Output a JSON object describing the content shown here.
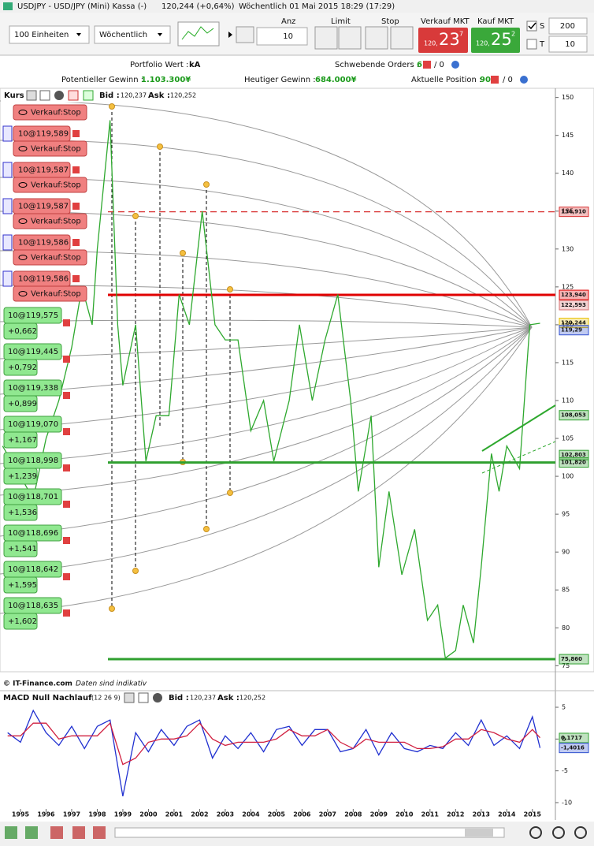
{
  "title_bar": {
    "instrument": "USDJPY - USD/JPY (Mini) Kassa (-)",
    "last": "120,244 (+0,64%)",
    "info": "Wöchentlich  01 Mai 2015 18:29 (17:29)"
  },
  "toolbar": {
    "units": "100 Einheiten",
    "period": "Wöchentlich",
    "anz_label": "Anz",
    "anz": 10,
    "limit_label": "Limit",
    "stop_label": "Stop",
    "sell": {
      "label": "Verkauf MKT",
      "prefix": "120,",
      "pips": "23",
      "fraction": "7"
    },
    "buy": {
      "label": "Kauf MKT",
      "prefix": "120,",
      "pips": "25",
      "fraction": "2"
    },
    "s_label": "S",
    "s_value": 200,
    "t_label": "T",
    "t_value": 10
  },
  "summary": {
    "portfolio_label": "Portfolio Wert :",
    "portfolio_value": "kA",
    "pending_label": "Schwebende Orders :",
    "pending_value": 6,
    "pending_sep": "/ 0",
    "potential_label": "Potentieller Gewinn :",
    "potential_value": "1.103.300¥",
    "today_label": "Heutiger Gewinn :",
    "today_value": "684.000¥",
    "position_label": "Aktuelle Position :",
    "position_value": 90,
    "position_sep": "/ 0"
  },
  "price_panel": {
    "name": "Kurs",
    "bid_label": "Bid :",
    "bid": "120,237",
    "ask_label": "Ask :",
    "ask": "120,252",
    "footer": "© IT-Finance.com",
    "footer_note": "Daten sind indikativ"
  },
  "macd_panel": {
    "name": "MACD Null Nachlauf",
    "params": "(12 26 9)",
    "bid_label": "Bid :",
    "bid": "120,237",
    "ask_label": "Ask :",
    "ask": "120,252"
  },
  "stop_orders": [
    {
      "action": "Verkauf:Stop"
    },
    {
      "label": "10@119,589",
      "action": "Verkauf:Stop"
    },
    {
      "label": "10@119,587",
      "action": "Verkauf:Stop"
    },
    {
      "label": "10@119,587",
      "action": "Verkauf:Stop"
    },
    {
      "label": "10@119,586",
      "action": "Verkauf:Stop"
    },
    {
      "label": "10@119,586",
      "action": "Verkauf:Stop"
    }
  ],
  "positions": [
    {
      "label": "10@119,575",
      "pnl": "+0,662"
    },
    {
      "label": "10@119,445",
      "pnl": "+0,792"
    },
    {
      "label": "10@119,338",
      "pnl": "+0,899"
    },
    {
      "label": "10@119,070",
      "pnl": "+1,167"
    },
    {
      "label": "10@118,998",
      "pnl": "+1,239"
    },
    {
      "label": "10@118,701",
      "pnl": "+1,536"
    },
    {
      "label": "10@118,696",
      "pnl": "+1,541"
    },
    {
      "label": "10@118,642",
      "pnl": "+1,595"
    },
    {
      "label": "10@118,635",
      "pnl": "+1,602"
    }
  ],
  "chart_data": [
    {
      "type": "line",
      "xlim": [
        1994.2,
        2015.9
      ],
      "ylim": [
        74.2,
        150.9
      ],
      "yticks": [
        75,
        80,
        85,
        90,
        95,
        100,
        105,
        110,
        115,
        120,
        125,
        130,
        135,
        140,
        145,
        150
      ],
      "x": [
        1994.3,
        1995.0,
        1995.5,
        1996.0,
        1996.5,
        1997.0,
        1997.4,
        1997.8,
        1998.0,
        1998.5,
        1998.8,
        1999.0,
        1999.5,
        1999.9,
        2000.3,
        2000.8,
        2001.2,
        2001.6,
        2002.1,
        2002.6,
        2003.0,
        2003.5,
        2004.0,
        2004.5,
        2004.9,
        2005.5,
        2005.9,
        2006.4,
        2006.9,
        2007.4,
        2007.9,
        2008.2,
        2008.7,
        2009.0,
        2009.4,
        2009.9,
        2010.4,
        2010.9,
        2011.3,
        2011.6,
        2012.0,
        2012.3,
        2012.7,
        2013.0,
        2013.4,
        2013.7,
        2014.0,
        2014.5,
        2014.9,
        2015.3
      ],
      "series": [
        {
          "color": "#2ea82e",
          "values": [
            104,
            100,
            97,
            105,
            110,
            117,
            125,
            120,
            130,
            147,
            120,
            112,
            120,
            102,
            108,
            108,
            124,
            120,
            135,
            120,
            118,
            118,
            106,
            110,
            102,
            110,
            120,
            110,
            118,
            124,
            110,
            98,
            108,
            88,
            98,
            87,
            93,
            81,
            83,
            76,
            77,
            83,
            78,
            88,
            103,
            98,
            104,
            101,
            120,
            120.2
          ]
        }
      ],
      "price_tags": [
        {
          "value": 134.91,
          "label": "134,910",
          "color": "#d83030",
          "line": "dashed"
        },
        {
          "value": 123.94,
          "label": "123,940",
          "color": "#e00000",
          "line": "solid"
        },
        {
          "value": 122.593,
          "label": "122,593",
          "color": "#d87070"
        },
        {
          "value": 120.244,
          "label": "120,244",
          "color": "#e8c000"
        },
        {
          "value": 119.29,
          "label": "119,29",
          "color": "#3050d0"
        },
        {
          "value": 108.053,
          "label": "108,053",
          "color": "#30a030"
        },
        {
          "value": 102.803,
          "label": "102,803",
          "color": "#30a030"
        },
        {
          "value": 101.82,
          "label": "101,820",
          "color": "#30a030",
          "line": "solid"
        },
        {
          "value": 75.86,
          "label": "75,860",
          "color": "#30a030",
          "line": "solid"
        }
      ]
    },
    {
      "type": "line",
      "xlim": [
        1994.2,
        2015.9
      ],
      "ylim": [
        -10.5,
        5.5
      ],
      "yticks": [
        5,
        0,
        -5,
        -10
      ],
      "xticks": [
        1995,
        1996,
        1997,
        1998,
        1999,
        2000,
        2001,
        2002,
        2003,
        2004,
        2005,
        2006,
        2007,
        2008,
        2009,
        2010,
        2011,
        2012,
        2013,
        2014,
        2015
      ],
      "x": [
        1994.5,
        1995.0,
        1995.5,
        1996.0,
        1996.5,
        1997.0,
        1997.5,
        1998.0,
        1998.5,
        1999.0,
        1999.5,
        2000.0,
        2000.5,
        2001.0,
        2001.5,
        2002.0,
        2002.5,
        2003.0,
        2003.5,
        2004.0,
        2004.5,
        2005.0,
        2005.5,
        2006.0,
        2006.5,
        2007.0,
        2007.5,
        2008.0,
        2008.5,
        2009.0,
        2009.5,
        2010.0,
        2010.5,
        2011.0,
        2011.5,
        2012.0,
        2012.5,
        2013.0,
        2013.5,
        2014.0,
        2014.5,
        2015.0,
        2015.3
      ],
      "series": [
        {
          "color": "#2030d0",
          "values": [
            1,
            -0.5,
            4.5,
            1,
            -1,
            2,
            -1.5,
            2,
            3,
            -9,
            1,
            -2,
            1.5,
            -1,
            2,
            3,
            -3,
            0.5,
            -1.5,
            1,
            -2,
            1.5,
            2,
            -1,
            1.5,
            1.5,
            -2,
            -1.5,
            1.5,
            -2.5,
            1,
            -1.5,
            -2,
            -1,
            -1.5,
            1,
            -1,
            3,
            -1,
            0.5,
            -1.5,
            3.5,
            -1.4
          ]
        },
        {
          "color": "#d02040",
          "values": [
            0.5,
            0.5,
            2.5,
            2.5,
            0,
            0.5,
            0.5,
            0.5,
            2.5,
            -4,
            -3,
            -0.5,
            0,
            0,
            0.5,
            2.5,
            0,
            -1,
            -0.5,
            -0.5,
            -0.5,
            0,
            1.5,
            0.5,
            0.5,
            1.5,
            -0.5,
            -1.5,
            0,
            -0.5,
            -0.5,
            -0.5,
            -1.5,
            -1.5,
            -1.2,
            0,
            0,
            1.5,
            1,
            0,
            -0.5,
            1.5,
            0.2
          ]
        }
      ],
      "price_tags": [
        {
          "value": 0.1717,
          "label": "0,1717",
          "color": "#30a030"
        },
        {
          "value": -1.4016,
          "label": "-1,4016",
          "color": "#3050d0"
        }
      ]
    }
  ]
}
